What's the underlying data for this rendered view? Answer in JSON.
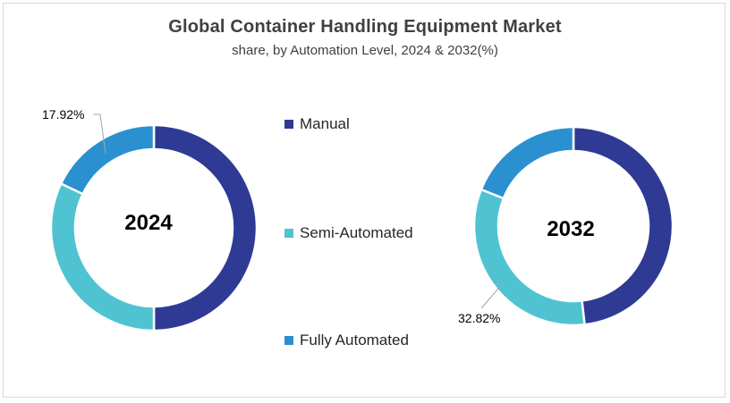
{
  "chart_data": {
    "type": "donut",
    "title": "Global Container Handling Equipment Market",
    "subtitle": "share, by Automation Level, 2024 & 2032(%)",
    "categories": [
      "Manual",
      "Semi-Automated",
      "Fully Automated"
    ],
    "colors": [
      "#2e3a94",
      "#4fc3d1",
      "#2a90d0"
    ],
    "series": [
      {
        "name": "2024",
        "values": [
          50.0,
          32.08,
          17.92
        ],
        "shown_labels": {
          "Fully Automated": "17.92%"
        }
      },
      {
        "name": "2032",
        "values": [
          48.2,
          32.82,
          18.98
        ],
        "shown_labels": {
          "Semi-Automated": "32.82%"
        }
      }
    ],
    "legend_position": "center",
    "grid": false
  },
  "title": "Global Container Handling Equipment Market",
  "subtitle": "share, by Automation Level, 2024 & 2032(%)",
  "donuts": [
    {
      "year": "2024",
      "label_text": "17.92%"
    },
    {
      "year": "2032",
      "label_text": "32.82%"
    }
  ],
  "legend": [
    {
      "label": "Manual",
      "color": "#2e3a94"
    },
    {
      "label": "Semi-Automated",
      "color": "#4fc3d1"
    },
    {
      "label": "Fully Automated",
      "color": "#2a90d0"
    }
  ]
}
